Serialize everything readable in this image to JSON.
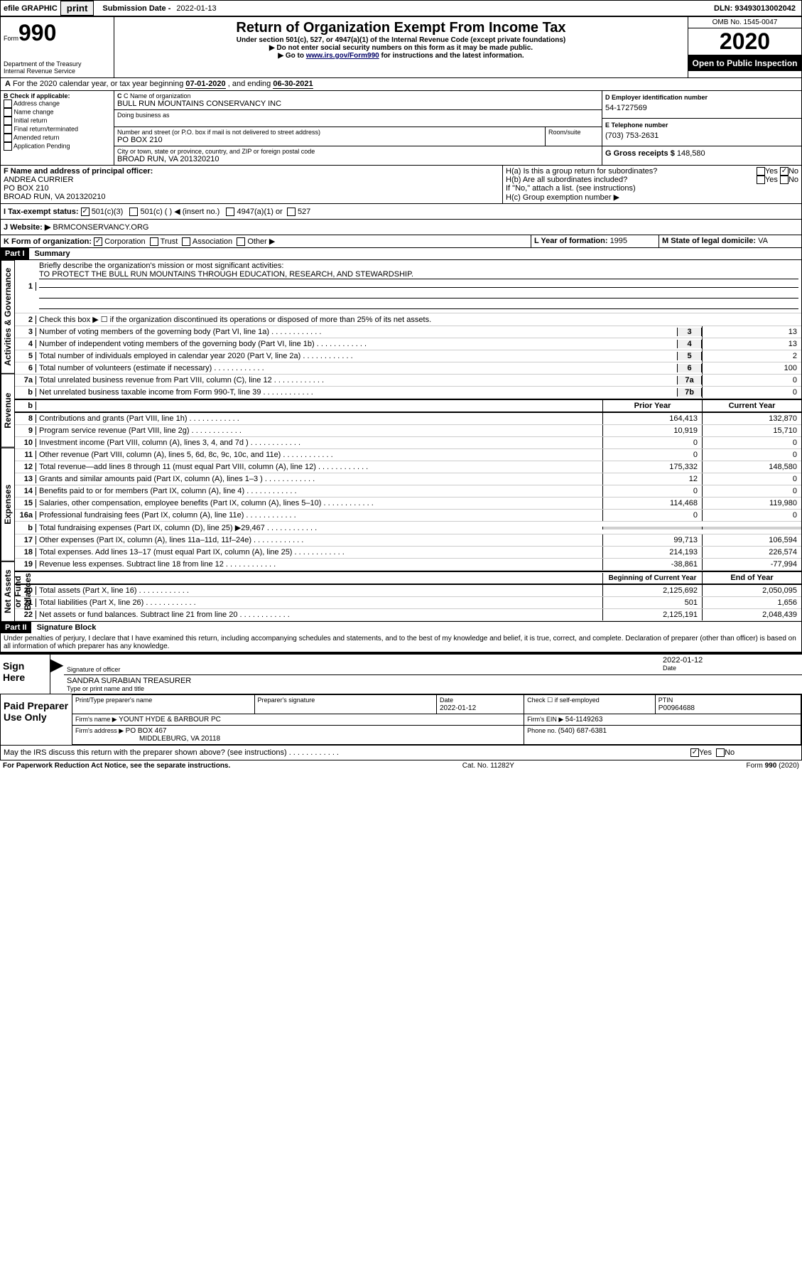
{
  "header": {
    "efile_label": "efile GRAPHIC",
    "print_btn": "print",
    "sub_date_label": "Submission Date - ",
    "sub_date": "2022-01-13",
    "dln_label": "DLN: ",
    "dln": "93493013002042"
  },
  "form_header": {
    "form_label": "Form",
    "form_no": "990",
    "dept": "Department of the Treasury\nInternal Revenue Service",
    "title": "Return of Organization Exempt From Income Tax",
    "sub1": "Under section 501(c), 527, or 4947(a)(1) of the Internal Revenue Code (except private foundations)",
    "sub2": "▶ Do not enter social security numbers on this form as it may be made public.",
    "sub3": "▶ Go to ",
    "link": "www.irs.gov/Form990",
    "sub3b": " for instructions and the latest information.",
    "omb": "OMB No. 1545-0047",
    "year": "2020",
    "public": "Open to Public Inspection"
  },
  "period": {
    "line": "For the 2020 calendar year, or tax year beginning ",
    "start": "07-01-2020",
    "mid": " , and ending ",
    "end": "06-30-2021"
  },
  "box_b": {
    "header": "B Check if applicable:",
    "items": [
      "Address change",
      "Name change",
      "Initial return",
      "Final return/terminated",
      "Amended return",
      "Application Pending"
    ]
  },
  "box_c": {
    "label": "C Name of organization",
    "name": "BULL RUN MOUNTAINS CONSERVANCY INC",
    "dba_label": "Doing business as",
    "addr_label": "Number and street (or P.O. box if mail is not delivered to street address)",
    "room_label": "Room/suite",
    "addr": "PO BOX 210",
    "city_label": "City or town, state or province, country, and ZIP or foreign postal code",
    "city": "BROAD RUN, VA  201320210"
  },
  "box_d": {
    "label": "D Employer identification number",
    "value": "54-1727569"
  },
  "box_e": {
    "label": "E Telephone number",
    "value": "(703) 753-2631"
  },
  "box_g": {
    "label": "G Gross receipts $ ",
    "value": "148,580"
  },
  "box_f": {
    "label": "F  Name and address of principal officer:",
    "name": "ANDREA CURRIER",
    "addr1": "PO BOX 210",
    "addr2": "BROAD RUN, VA  201320210"
  },
  "box_h": {
    "a": "H(a)  Is this a group return for subordinates?",
    "b": "H(b)  Are all subordinates included?",
    "note": "If \"No,\" attach a list. (see instructions)",
    "c": "H(c)  Group exemption number ▶",
    "yes": "Yes",
    "no": "No"
  },
  "box_i": {
    "label": "I  Tax-exempt status:",
    "c501c3": "501(c)(3)",
    "c501c": "501(c) (   ) ◀ (insert no.)",
    "c4947": "4947(a)(1) or",
    "c527": "527"
  },
  "box_j": {
    "label": "J  Website: ▶ ",
    "value": "BRMCONSERVANCY.ORG"
  },
  "box_k": {
    "label": "K Form of organization:",
    "corp": "Corporation",
    "trust": "Trust",
    "assoc": "Association",
    "other": "Other ▶"
  },
  "box_l": {
    "label": "L Year of formation: ",
    "value": "1995"
  },
  "box_m": {
    "label": "M State of legal domicile: ",
    "value": "VA"
  },
  "part1": {
    "header": "Part I",
    "title": "Summary",
    "q1": "Briefly describe the organization's mission or most significant activities:",
    "a1": "TO PROTECT THE BULL RUN MOUNTAINS THROUGH EDUCATION, RESEARCH, AND STEWARDSHIP.",
    "q2": "Check this box ▶ ☐  if the organization discontinued its operations or disposed of more than 25% of its net assets.",
    "vtext_ag": "Activities & Governance",
    "vtext_rev": "Revenue",
    "vtext_exp": "Expenses",
    "vtext_na": "Net Assets or Fund Balances",
    "prior": "Prior Year",
    "current": "Current Year",
    "beginning": "Beginning of Current Year",
    "endyear": "End of Year"
  },
  "gov_rows": [
    {
      "n": "3",
      "desc": "Number of voting members of the governing body (Part VI, line 1a)",
      "ln": "3",
      "v": "13"
    },
    {
      "n": "4",
      "desc": "Number of independent voting members of the governing body (Part VI, line 1b)",
      "ln": "4",
      "v": "13"
    },
    {
      "n": "5",
      "desc": "Total number of individuals employed in calendar year 2020 (Part V, line 2a)",
      "ln": "5",
      "v": "2"
    },
    {
      "n": "6",
      "desc": "Total number of volunteers (estimate if necessary)",
      "ln": "6",
      "v": "100"
    },
    {
      "n": "7a",
      "desc": "Total unrelated business revenue from Part VIII, column (C), line 12",
      "ln": "7a",
      "v": "0"
    },
    {
      "n": "b",
      "desc": "Net unrelated business taxable income from Form 990-T, line 39",
      "ln": "7b",
      "v": "0"
    }
  ],
  "rev_rows": [
    {
      "n": "8",
      "desc": "Contributions and grants (Part VIII, line 1h)",
      "p": "164,413",
      "c": "132,870"
    },
    {
      "n": "9",
      "desc": "Program service revenue (Part VIII, line 2g)",
      "p": "10,919",
      "c": "15,710"
    },
    {
      "n": "10",
      "desc": "Investment income (Part VIII, column (A), lines 3, 4, and 7d )",
      "p": "0",
      "c": "0"
    },
    {
      "n": "11",
      "desc": "Other revenue (Part VIII, column (A), lines 5, 6d, 8c, 9c, 10c, and 11e)",
      "p": "0",
      "c": "0"
    },
    {
      "n": "12",
      "desc": "Total revenue—add lines 8 through 11 (must equal Part VIII, column (A), line 12)",
      "p": "175,332",
      "c": "148,580"
    }
  ],
  "exp_rows": [
    {
      "n": "13",
      "desc": "Grants and similar amounts paid (Part IX, column (A), lines 1–3 )",
      "p": "12",
      "c": "0"
    },
    {
      "n": "14",
      "desc": "Benefits paid to or for members (Part IX, column (A), line 4)",
      "p": "0",
      "c": "0"
    },
    {
      "n": "15",
      "desc": "Salaries, other compensation, employee benefits (Part IX, column (A), lines 5–10)",
      "p": "114,468",
      "c": "119,980"
    },
    {
      "n": "16a",
      "desc": "Professional fundraising fees (Part IX, column (A), line 11e)",
      "p": "0",
      "c": "0"
    },
    {
      "n": "b",
      "desc": "Total fundraising expenses (Part IX, column (D), line 25) ▶29,467",
      "p": "",
      "c": "",
      "grey": true
    },
    {
      "n": "17",
      "desc": "Other expenses (Part IX, column (A), lines 11a–11d, 11f–24e)",
      "p": "99,713",
      "c": "106,594"
    },
    {
      "n": "18",
      "desc": "Total expenses. Add lines 13–17 (must equal Part IX, column (A), line 25)",
      "p": "214,193",
      "c": "226,574"
    },
    {
      "n": "19",
      "desc": "Revenue less expenses. Subtract line 18 from line 12",
      "p": "-38,861",
      "c": "-77,994"
    }
  ],
  "na_rows": [
    {
      "n": "20",
      "desc": "Total assets (Part X, line 16)",
      "p": "2,125,692",
      "c": "2,050,095"
    },
    {
      "n": "21",
      "desc": "Total liabilities (Part X, line 26)",
      "p": "501",
      "c": "1,656"
    },
    {
      "n": "22",
      "desc": "Net assets or fund balances. Subtract line 21 from line 20",
      "p": "2,125,191",
      "c": "2,048,439"
    }
  ],
  "part2": {
    "header": "Part II",
    "title": "Signature Block",
    "perjury": "Under penalties of perjury, I declare that I have examined this return, including accompanying schedules and statements, and to the best of my knowledge and belief, it is true, correct, and complete. Declaration of preparer (other than officer) is based on all information of which preparer has any knowledge.",
    "sign_here": "Sign Here",
    "sig_officer": "Signature of officer",
    "date_label": "Date",
    "sig_date": "2022-01-12",
    "officer_name": "SANDRA SURABIAN  TREASURER",
    "type_label": "Type or print name and title",
    "paid_prep": "Paid Preparer Use Only",
    "prep_name_label": "Print/Type preparer's name",
    "prep_sig_label": "Preparer's signature",
    "prep_date": "2022-01-12",
    "check_self": "Check ☐ if self-employed",
    "ptin_label": "PTIN",
    "ptin": "P00964688",
    "firm_name_label": "Firm's name    ▶ ",
    "firm_name": "YOUNT HYDE & BARBOUR PC",
    "firm_ein_label": "Firm's EIN ▶ ",
    "firm_ein": "54-1149263",
    "firm_addr_label": "Firm's address ▶ ",
    "firm_addr": "PO BOX 467",
    "firm_city": "MIDDLEBURG, VA  20118",
    "phone_label": "Phone no. ",
    "phone": "(540) 687-6381",
    "discuss": "May the IRS discuss this return with the preparer shown above? (see instructions)",
    "yes": "Yes",
    "no": "No"
  },
  "footer": {
    "pra": "For Paperwork Reduction Act Notice, see the separate instructions.",
    "cat": "Cat. No. 11282Y",
    "form": "Form 990 (2020)"
  }
}
